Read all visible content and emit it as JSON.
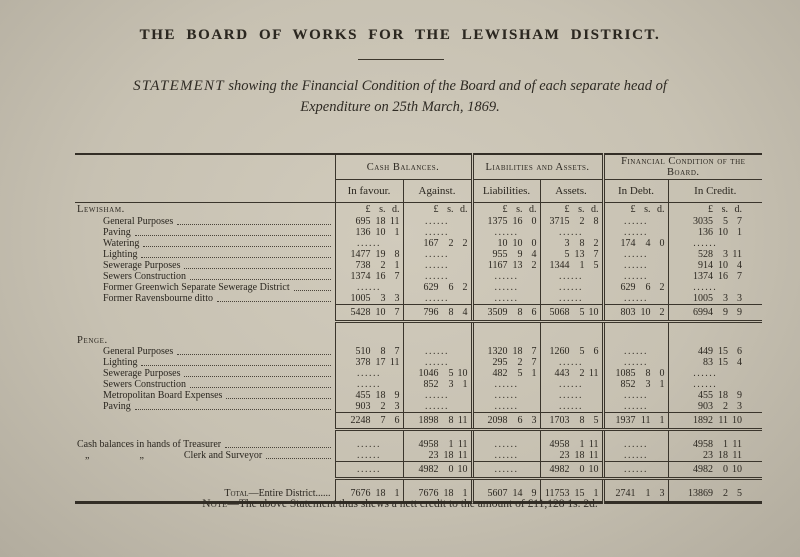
{
  "header": {
    "title": "THE BOARD OF WORKS FOR THE LEWISHAM DISTRICT.",
    "subtitle_lead": "STATEMENT",
    "subtitle_line1": " showing the Financial Condition of the Board and of each separate head of",
    "subtitle_line2": "Expenditure on 25th March, 1869."
  },
  "table": {
    "blank": "......",
    "currency_header": {
      "pounds": "£",
      "shillings": "s.",
      "pence": "d."
    },
    "column_groups": [
      {
        "label": "Cash Balances.",
        "columns": [
          "In favour.",
          "Against."
        ]
      },
      {
        "label": "Liabilities and Assets.",
        "columns": [
          "Liabilities.",
          "Assets."
        ]
      },
      {
        "label": "Financial Condition of the Board.",
        "columns": [
          "In Debt.",
          "In Credit."
        ]
      }
    ],
    "sections": [
      {
        "heading": "Lewisham.",
        "show_currency_header": true,
        "rows": [
          {
            "label": "General Purposes",
            "values": [
              [
                695,
                18,
                11
              ],
              null,
              [
                1375,
                16,
                0
              ],
              [
                3715,
                2,
                8
              ],
              null,
              [
                3035,
                5,
                7
              ]
            ]
          },
          {
            "label": "Paving",
            "values": [
              [
                136,
                10,
                1
              ],
              null,
              null,
              null,
              null,
              [
                136,
                10,
                1
              ]
            ]
          },
          {
            "label": "Watering",
            "values": [
              null,
              [
                167,
                2,
                2
              ],
              [
                10,
                10,
                0
              ],
              [
                3,
                8,
                2
              ],
              [
                174,
                4,
                0
              ],
              null
            ]
          },
          {
            "label": "Lighting",
            "values": [
              [
                1477,
                19,
                8
              ],
              null,
              [
                955,
                9,
                4
              ],
              [
                5,
                13,
                7
              ],
              null,
              [
                528,
                3,
                11
              ]
            ]
          },
          {
            "label": "Sewerage Purposes",
            "values": [
              [
                738,
                2,
                1
              ],
              null,
              [
                1167,
                13,
                2
              ],
              [
                1344,
                1,
                5
              ],
              null,
              [
                914,
                10,
                4
              ]
            ]
          },
          {
            "label": "Sewers Construction",
            "values": [
              [
                1374,
                16,
                7
              ],
              null,
              null,
              null,
              null,
              [
                1374,
                16,
                7
              ]
            ]
          },
          {
            "label": "Former Greenwich Separate Sewerage District",
            "values": [
              null,
              [
                629,
                6,
                2
              ],
              null,
              null,
              [
                629,
                6,
                2
              ],
              null
            ]
          },
          {
            "label": "Former Ravensbourne ditto",
            "values": [
              [
                1005,
                3,
                3
              ],
              null,
              null,
              null,
              null,
              [
                1005,
                3,
                3
              ]
            ]
          }
        ],
        "total": [
          [
            5428,
            10,
            7
          ],
          [
            796,
            8,
            4
          ],
          [
            3509,
            8,
            6
          ],
          [
            5068,
            5,
            10
          ],
          [
            803,
            10,
            2
          ],
          [
            6994,
            9,
            9
          ]
        ]
      },
      {
        "heading": "Penge.",
        "show_currency_header": false,
        "rows": [
          {
            "label": "General Purposes",
            "values": [
              [
                510,
                8,
                7
              ],
              null,
              [
                1320,
                18,
                7
              ],
              [
                1260,
                5,
                6
              ],
              null,
              [
                449,
                15,
                6
              ]
            ]
          },
          {
            "label": "Lighting",
            "values": [
              [
                378,
                17,
                11
              ],
              null,
              [
                295,
                2,
                7
              ],
              null,
              null,
              [
                83,
                15,
                4
              ]
            ]
          },
          {
            "label": "Sewerage Purposes",
            "values": [
              null,
              [
                1046,
                5,
                10
              ],
              [
                482,
                5,
                1
              ],
              [
                443,
                2,
                11
              ],
              [
                1085,
                8,
                0
              ],
              null
            ]
          },
          {
            "label": "Sewers Construction",
            "values": [
              null,
              [
                852,
                3,
                1
              ],
              null,
              null,
              [
                852,
                3,
                1
              ],
              null
            ]
          },
          {
            "label": "Metropolitan Board Expenses",
            "values": [
              [
                455,
                18,
                9
              ],
              null,
              null,
              null,
              null,
              [
                455,
                18,
                9
              ]
            ]
          },
          {
            "label": "Paving",
            "values": [
              [
                903,
                2,
                3
              ],
              null,
              null,
              null,
              null,
              [
                903,
                2,
                3
              ]
            ]
          }
        ],
        "total": [
          [
            2248,
            7,
            6
          ],
          [
            1898,
            8,
            11
          ],
          [
            2098,
            6,
            3
          ],
          [
            1703,
            8,
            5
          ],
          [
            1937,
            11,
            1
          ],
          [
            1892,
            11,
            10
          ]
        ]
      },
      {
        "heading": null,
        "show_currency_header": false,
        "rows": [
          {
            "label": "Cash balances in hands of Treasurer",
            "no_indent": true,
            "values": [
              null,
              [
                4958,
                1,
                11
              ],
              null,
              [
                4958,
                1,
                11
              ],
              null,
              [
                4958,
                1,
                11
              ]
            ]
          },
          {
            "label": "„     „    Clerk and Surveyor",
            "ditto": true,
            "values": [
              null,
              [
                23,
                18,
                11
              ],
              null,
              [
                23,
                18,
                11
              ],
              null,
              [
                23,
                18,
                11
              ]
            ]
          }
        ],
        "total": [
          null,
          [
            4982,
            0,
            10
          ],
          null,
          [
            4982,
            0,
            10
          ],
          null,
          [
            4982,
            0,
            10
          ]
        ]
      }
    ],
    "grand_total": {
      "label_smallcaps": "Total",
      "label_rest": "—Entire District......",
      "values": [
        [
          7676,
          18,
          1
        ],
        [
          7676,
          18,
          1
        ],
        [
          5607,
          14,
          9
        ],
        [
          11753,
          15,
          1
        ],
        [
          2741,
          1,
          3
        ],
        [
          13869,
          2,
          5
        ]
      ]
    }
  },
  "note": {
    "label": "Note",
    "text": "—The above Statement thus shews a nett credit to the amount of £11,128 1s. 2d."
  }
}
